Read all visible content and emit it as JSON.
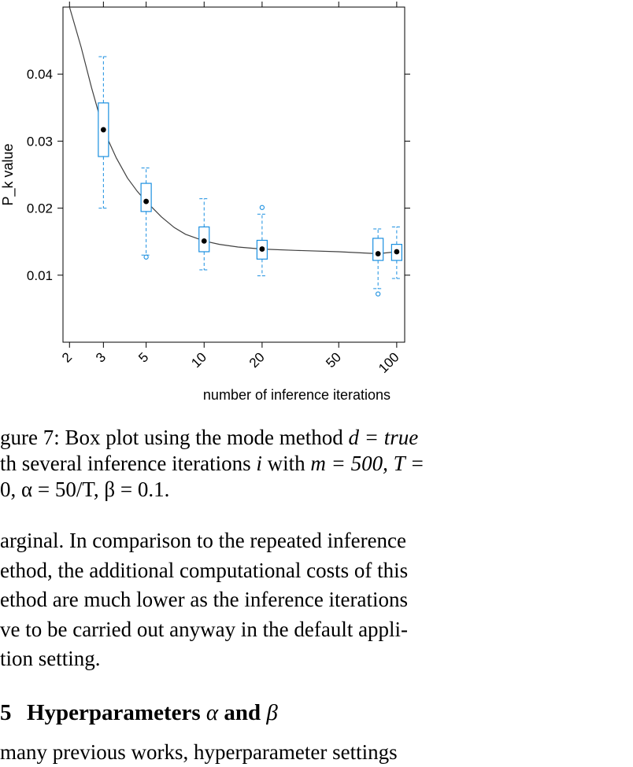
{
  "chart_data": {
    "type": "box",
    "xlabel": "number of inference iterations",
    "ylabel": "P_k value",
    "x_scale": "log",
    "xlim": [
      1.85,
      110
    ],
    "ylim": [
      0.0,
      0.05
    ],
    "x_ticks": [
      2,
      3,
      5,
      10,
      20,
      50,
      100
    ],
    "x_tick_labels": [
      "2",
      "3",
      "5",
      "10",
      "20",
      "50",
      "100"
    ],
    "y_ticks": [
      0.01,
      0.02,
      0.03,
      0.04
    ],
    "y_tick_labels": [
      "0.01",
      "0.02",
      "0.03",
      "0.04"
    ],
    "boxes": [
      {
        "x": 3,
        "whisker_low": 0.02,
        "q1": 0.0277,
        "median": 0.0317,
        "q3": 0.0357,
        "whisker_high": 0.0426,
        "outliers": []
      },
      {
        "x": 5,
        "whisker_low": 0.013,
        "q1": 0.0195,
        "median": 0.021,
        "q3": 0.0237,
        "whisker_high": 0.026,
        "outliers": [
          0.0127
        ]
      },
      {
        "x": 10,
        "whisker_low": 0.0108,
        "q1": 0.0135,
        "median": 0.0151,
        "q3": 0.0172,
        "whisker_high": 0.0214,
        "outliers": []
      },
      {
        "x": 20,
        "whisker_low": 0.0099,
        "q1": 0.0124,
        "median": 0.0139,
        "q3": 0.0152,
        "whisker_high": 0.0191,
        "outliers": [
          0.0201
        ]
      },
      {
        "x": 80,
        "whisker_low": 0.008,
        "q1": 0.0122,
        "median": 0.0132,
        "q3": 0.0155,
        "whisker_high": 0.0169,
        "outliers": [
          0.0072
        ]
      },
      {
        "x": 100,
        "whisker_low": 0.0095,
        "q1": 0.0122,
        "median": 0.0135,
        "q3": 0.0146,
        "whisker_high": 0.0172,
        "outliers": []
      }
    ],
    "fit_line": {
      "x": [
        1.9,
        2,
        2.3,
        2.6,
        3,
        3.5,
        4,
        4.5,
        5,
        6,
        7,
        8,
        10,
        12,
        15,
        20,
        30,
        50,
        80,
        100
      ],
      "y": [
        0.053,
        0.05,
        0.044,
        0.038,
        0.0317,
        0.0275,
        0.0245,
        0.0225,
        0.021,
        0.0187,
        0.0171,
        0.0161,
        0.0151,
        0.0146,
        0.0142,
        0.0139,
        0.0137,
        0.0135,
        0.0132,
        0.0135
      ]
    },
    "colors": {
      "box": "#1a8fe0",
      "median_dot": "#000000",
      "line": "#404040"
    }
  },
  "caption": {
    "line1": "gure 7: Box plot using the mode method ",
    "line1_math": "d = true",
    "line2_a": "th several inference iterations ",
    "line2_i": "i",
    "line2_b": " with ",
    "line2_m": "m = 500, T =",
    "line3": "0, α = 50/T, β = 0.1."
  },
  "paragraph": [
    "arginal. In comparison to the repeated inference",
    "ethod, the additional computational costs of this",
    "ethod are much lower as the inference iterations",
    "ve to be carried out anyway in the default appli-",
    "tion setting."
  ],
  "section": {
    "number": "5",
    "title": "Hyperparameters ",
    "alpha": "α",
    "and": " and ",
    "beta": "β"
  },
  "next_line": "many previous works, hyperparameter settings"
}
